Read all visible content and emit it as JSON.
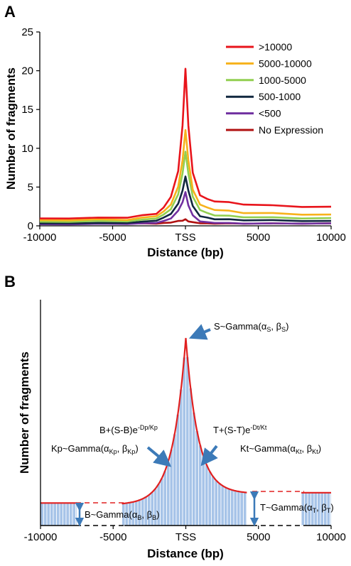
{
  "chart_data": [
    {
      "panel_label": "A",
      "type": "line",
      "xlabel": "Distance (bp)",
      "ylabel": "Number of fragments",
      "xlim": [
        -10000,
        10000
      ],
      "ylim": [
        0,
        25
      ],
      "x_ticks": [
        "-10000",
        "-5000",
        "TSS",
        "5000",
        "10000"
      ],
      "y_ticks": [
        "0",
        "5",
        "10",
        "15",
        "20",
        "25"
      ],
      "legend_position": "top-right",
      "x": [
        -10000,
        -8000,
        -6000,
        -4000,
        -3000,
        -2000,
        -1500,
        -1000,
        -500,
        -200,
        0,
        200,
        500,
        1000,
        1500,
        2000,
        3000,
        4000,
        6000,
        8000,
        10000
      ],
      "series": [
        {
          "name": ">10000",
          "color": "#e8141b",
          "values": [
            0.9,
            1.0,
            1.0,
            1.1,
            1.3,
            1.6,
            2.3,
            3.8,
            7.0,
            13.0,
            20.2,
            13.0,
            6.8,
            4.0,
            3.4,
            3.2,
            3.0,
            2.8,
            2.6,
            2.5,
            2.4
          ]
        },
        {
          "name": "5000-10000",
          "color": "#f7b21b",
          "values": [
            0.7,
            0.75,
            0.8,
            0.8,
            1.0,
            1.3,
            1.8,
            2.8,
            5.0,
            8.5,
            12.3,
            8.5,
            4.6,
            2.8,
            2.3,
            2.1,
            1.9,
            1.7,
            1.6,
            1.5,
            1.4
          ]
        },
        {
          "name": "1000-5000",
          "color": "#92cf50",
          "values": [
            0.5,
            0.55,
            0.6,
            0.6,
            0.75,
            1.0,
            1.4,
            2.2,
            4.0,
            6.8,
            9.5,
            6.8,
            3.7,
            2.1,
            1.6,
            1.4,
            1.25,
            1.15,
            1.05,
            1.0,
            0.95
          ]
        },
        {
          "name": "500-1000",
          "color": "#10273f",
          "values": [
            0.3,
            0.35,
            0.35,
            0.4,
            0.5,
            0.7,
            1.0,
            1.6,
            2.8,
            4.6,
            6.3,
            4.6,
            2.5,
            1.3,
            1.0,
            0.9,
            0.8,
            0.75,
            0.7,
            0.65,
            0.6
          ]
        },
        {
          "name": "<500",
          "color": "#7130a0",
          "values": [
            0.2,
            0.2,
            0.25,
            0.25,
            0.3,
            0.4,
            0.6,
            1.0,
            1.9,
            3.1,
            4.3,
            2.7,
            1.3,
            0.6,
            0.45,
            0.4,
            0.35,
            0.3,
            0.3,
            0.3,
            0.3
          ]
        },
        {
          "name": "No Expression",
          "color": "#b01010",
          "values": [
            0.3,
            0.3,
            0.3,
            0.3,
            0.3,
            0.3,
            0.35,
            0.45,
            0.6,
            0.7,
            0.8,
            0.6,
            0.45,
            0.35,
            0.3,
            0.3,
            0.3,
            0.3,
            0.3,
            0.3,
            0.3
          ]
        }
      ]
    },
    {
      "panel_label": "B",
      "type": "bar",
      "xlabel": "Distance (bp)",
      "ylabel": "Number of fragments",
      "xlim": [
        -10000,
        10000
      ],
      "x_ticks": [
        "-10000",
        "-5000",
        "TSS",
        "5000",
        "10000"
      ],
      "background_B": 0.11,
      "background_T": 0.17,
      "peak_S": 1.0,
      "annotations": [
        {
          "main": "S~Gamma(α",
          "sub1": "S",
          "mid": ", β",
          "sub2": "S",
          "end": ")"
        },
        {
          "main": "Kp~Gamma(α",
          "sub1": "Kp",
          "mid": ", β",
          "sub2": "Kp",
          "end": ")"
        },
        {
          "main": "Kt~Gamma(α",
          "sub1": "Kt",
          "mid": ", β",
          "sub2": "Kt",
          "end": ")"
        },
        {
          "main": "B~Gamma(α",
          "sub1": "B",
          "mid": ", β",
          "sub2": "B",
          "end": ")"
        },
        {
          "main": "T~Gamma(α",
          "sub1": "T",
          "mid": ", β",
          "sub2": "T",
          "end": ")"
        }
      ],
      "formula_left": {
        "base": "B+(S-B)e",
        "exp": "-Dp/Kp"
      },
      "formula_right": {
        "base": "T+(S-T)e",
        "exp": "-Dt/Kt"
      },
      "colors": {
        "bars": "#a7c4e8",
        "curve": "#e02020",
        "arrows": "#3c7ab8",
        "baseline": "#000000"
      }
    }
  ]
}
